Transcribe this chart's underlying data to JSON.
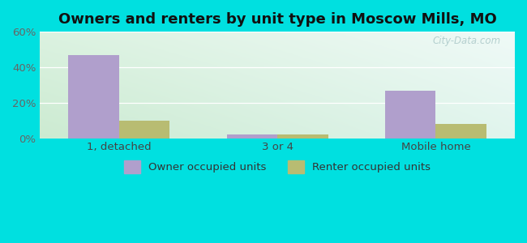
{
  "title": "Owners and renters by unit type in Moscow Mills, MO",
  "categories": [
    "1, detached",
    "3 or 4",
    "Mobile home"
  ],
  "owner_values": [
    46.5,
    2.2,
    26.5
  ],
  "renter_values": [
    10.0,
    2.0,
    8.0
  ],
  "owner_color": "#b09fcc",
  "renter_color": "#b8bc72",
  "ylim": [
    0,
    60
  ],
  "yticks": [
    0,
    20,
    40,
    60
  ],
  "ytick_labels": [
    "0%",
    "20%",
    "40%",
    "60%"
  ],
  "background_outer": "#00e0e0",
  "bar_width": 0.32,
  "title_fontsize": 13,
  "tick_fontsize": 9.5,
  "legend_fontsize": 9.5,
  "watermark": "City-Data.com",
  "grad_top_left": "#d6ede2",
  "grad_top_right": "#eaf5f5",
  "grad_bottom_left": "#c8e6cc",
  "grad_bottom_right": "#ddf0ee"
}
